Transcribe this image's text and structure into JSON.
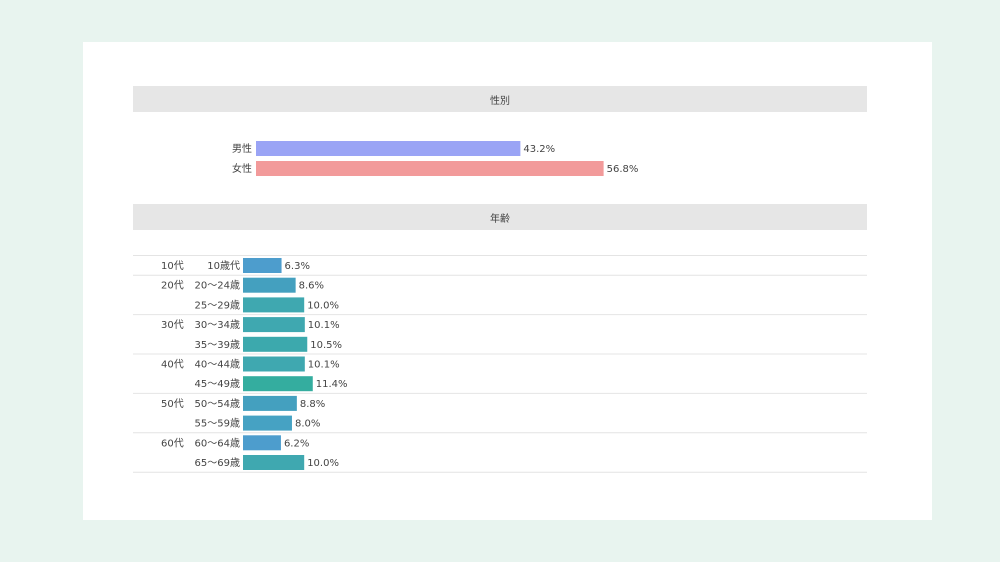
{
  "gender_section": {
    "title": "性別"
  },
  "age_section": {
    "title": "年齢"
  },
  "chart_data": [
    {
      "type": "bar",
      "orientation": "horizontal",
      "title": "性別",
      "categories": [
        "男性",
        "女性"
      ],
      "values": [
        43.2,
        56.8
      ],
      "value_labels": [
        "43.2%",
        "56.8%"
      ],
      "colors": [
        "#9aa4f5",
        "#f29a9a"
      ]
    },
    {
      "type": "bar",
      "orientation": "horizontal",
      "title": "年齢",
      "groups": [
        "10代",
        "20代",
        "30代",
        "40代",
        "50代",
        "60代"
      ],
      "rows": [
        {
          "group": "10代",
          "label": "10歳代",
          "value": 6.3,
          "value_label": "6.3%",
          "color": "#4d9dcd"
        },
        {
          "group": "20代",
          "label": "20～24歳",
          "value": 8.6,
          "value_label": "8.6%",
          "color": "#44a0bf"
        },
        {
          "group": "",
          "label": "25～29歳",
          "value": 10.0,
          "value_label": "10.0%",
          "color": "#3fa8b0"
        },
        {
          "group": "30代",
          "label": "30～34歳",
          "value": 10.1,
          "value_label": "10.1%",
          "color": "#3fa8b0"
        },
        {
          "group": "",
          "label": "35～39歳",
          "value": 10.5,
          "value_label": "10.5%",
          "color": "#3ca9ad"
        },
        {
          "group": "40代",
          "label": "40～44歳",
          "value": 10.1,
          "value_label": "10.1%",
          "color": "#3fa8b0"
        },
        {
          "group": "",
          "label": "45～49歳",
          "value": 11.4,
          "value_label": "11.4%",
          "color": "#34ad9f"
        },
        {
          "group": "50代",
          "label": "50～54歳",
          "value": 8.8,
          "value_label": "8.8%",
          "color": "#44a0bf"
        },
        {
          "group": "",
          "label": "55～59歳",
          "value": 8.0,
          "value_label": "8.0%",
          "color": "#46a2c3"
        },
        {
          "group": "60代",
          "label": "60～64歳",
          "value": 6.2,
          "value_label": "6.2%",
          "color": "#4d9dcd"
        },
        {
          "group": "",
          "label": "65～69歳",
          "value": 10.0,
          "value_label": "10.0%",
          "color": "#3fa8b0"
        }
      ]
    }
  ]
}
